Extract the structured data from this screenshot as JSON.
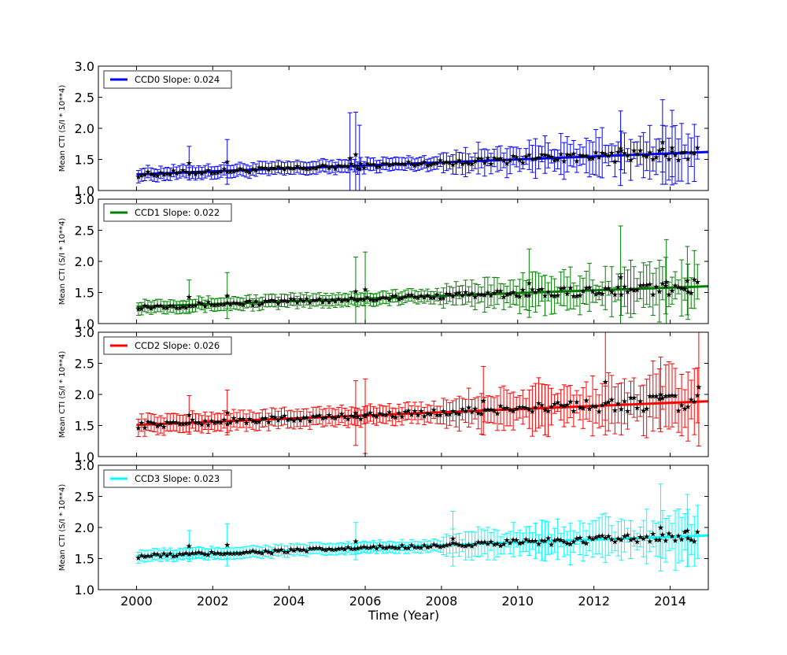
{
  "figure": {
    "xlabel": "Time (Year)"
  },
  "chart_data": [
    {
      "type": "scatter",
      "series_name": "CCD0 Slope: 0.024",
      "color": "#0000ff",
      "ylabel": "Mean CTI (S/I * 10**4)",
      "xlim": [
        1999,
        2015
      ],
      "ylim": [
        1.0,
        3.0
      ],
      "x_ticks": [
        2000,
        2002,
        2004,
        2006,
        2008,
        2010,
        2012,
        2014
      ],
      "y_ticks": [
        "1.0",
        "1.5",
        "2.0",
        "2.5",
        "3.0"
      ],
      "fit": {
        "x": [
          2000,
          2015
        ],
        "y": [
          1.26,
          1.62
        ]
      },
      "err_base": 0.1,
      "err_late": 0.3,
      "noise": 0.04,
      "outliers": [
        [
          2001.38,
          1.44,
          0.27
        ],
        [
          2002.38,
          1.46,
          0.36
        ],
        [
          2005.6,
          1.52,
          0.73
        ],
        [
          2005.75,
          1.58,
          0.68
        ],
        [
          2005.85,
          1.35,
          0.7
        ],
        [
          2012.7,
          1.68,
          0.6
        ],
        [
          2013.8,
          1.78,
          0.68
        ],
        [
          2014.05,
          1.69,
          0.6
        ]
      ]
    },
    {
      "type": "scatter",
      "series_name": "CCD1 Slope: 0.022",
      "color": "#008000",
      "ylabel": "Mean CTI (S/I * 10**4)",
      "xlim": [
        1999,
        2015
      ],
      "ylim": [
        1.0,
        3.0
      ],
      "x_ticks": [
        2000,
        2002,
        2004,
        2006,
        2008,
        2010,
        2012,
        2014
      ],
      "y_ticks": [
        "1.0",
        "1.5",
        "2.0",
        "2.5",
        "3.0"
      ],
      "fit": {
        "x": [
          2000,
          2015
        ],
        "y": [
          1.27,
          1.6
        ]
      },
      "err_base": 0.1,
      "err_late": 0.32,
      "noise": 0.04,
      "outliers": [
        [
          2001.38,
          1.43,
          0.27
        ],
        [
          2002.38,
          1.45,
          0.37
        ],
        [
          2005.75,
          1.52,
          0.55
        ],
        [
          2006.0,
          1.55,
          0.6
        ],
        [
          2010.3,
          1.65,
          0.55
        ],
        [
          2012.7,
          1.75,
          0.82
        ],
        [
          2013.9,
          1.67,
          0.68
        ],
        [
          2014.45,
          1.69,
          0.55
        ]
      ]
    },
    {
      "type": "scatter",
      "series_name": "CCD2 Slope: 0.026",
      "color": "#ff0000",
      "ylabel": "Mean CTI (S/I * 10**4)",
      "xlim": [
        1999,
        2015
      ],
      "ylim": [
        1.0,
        3.0
      ],
      "x_ticks": [
        2000,
        2002,
        2004,
        2006,
        2008,
        2010,
        2012,
        2014
      ],
      "y_ticks": [
        "1.0",
        "1.5",
        "2.0",
        "2.5",
        "3.0"
      ],
      "fit": {
        "x": [
          2000,
          2015
        ],
        "y": [
          1.51,
          1.89
        ]
      },
      "err_base": 0.14,
      "err_late": 0.36,
      "noise": 0.05,
      "outliers": [
        [
          2001.38,
          1.67,
          0.31
        ],
        [
          2002.38,
          1.71,
          0.36
        ],
        [
          2005.75,
          1.7,
          0.52
        ],
        [
          2006.0,
          1.65,
          0.6
        ],
        [
          2009.1,
          1.9,
          0.55
        ],
        [
          2012.3,
          2.2,
          0.85
        ],
        [
          2013.75,
          2.0,
          0.6
        ],
        [
          2014.75,
          2.12,
          0.95
        ]
      ]
    },
    {
      "type": "scatter",
      "series_name": "CCD3 Slope: 0.023",
      "color": "#00ffff",
      "ylabel": "Mean CTI (S/I * 10**4)",
      "xlim": [
        1999,
        2015
      ],
      "ylim": [
        1.0,
        3.0
      ],
      "x_ticks": [
        2000,
        2002,
        2004,
        2006,
        2008,
        2010,
        2012,
        2014
      ],
      "y_ticks": [
        "1.0",
        "1.5",
        "2.0",
        "2.5",
        "3.0"
      ],
      "fit": {
        "x": [
          2000,
          2015
        ],
        "y": [
          1.54,
          1.87
        ]
      },
      "err_base": 0.09,
      "err_late": 0.3,
      "noise": 0.03,
      "outliers": [
        [
          2001.38,
          1.7,
          0.25
        ],
        [
          2002.38,
          1.72,
          0.34
        ],
        [
          2005.75,
          1.78,
          0.3
        ],
        [
          2008.3,
          1.82,
          0.44
        ],
        [
          2013.75,
          2.0,
          0.7
        ],
        [
          2014.45,
          1.95,
          0.58
        ]
      ]
    }
  ]
}
